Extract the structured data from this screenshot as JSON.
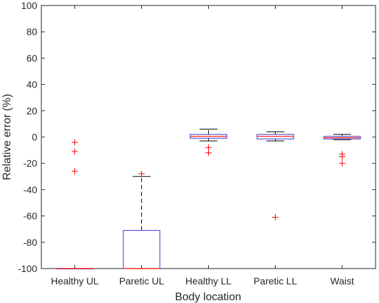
{
  "chart_data": {
    "type": "box",
    "xlabel": "Body location",
    "ylabel": "Relative error (%)",
    "ylim": [
      -100,
      100
    ],
    "yticks": [
      -100,
      -80,
      -60,
      -40,
      -20,
      0,
      20,
      40,
      60,
      80,
      100
    ],
    "grid": false,
    "categories": [
      "Healthy UL",
      "Paretic UL",
      "Healthy LL",
      "Paretic LL",
      "Waist"
    ],
    "boxes": [
      {
        "category": "Healthy UL",
        "whisker_low": -100,
        "q1": -100,
        "median": -100,
        "q3": -100,
        "whisker_high": -100,
        "outliers": [
          -4,
          -11,
          -26
        ]
      },
      {
        "category": "Paretic UL",
        "whisker_low": -100,
        "q1": -100,
        "median": -100,
        "q3": -71,
        "whisker_high": -30,
        "outliers": [
          -28
        ]
      },
      {
        "category": "Healthy LL",
        "whisker_low": -3,
        "q1": -1,
        "median": 0.5,
        "q3": 2,
        "whisker_high": 6,
        "outliers": [
          -8,
          -12
        ]
      },
      {
        "category": "Paretic LL",
        "whisker_low": -3,
        "q1": -1.5,
        "median": 0.5,
        "q3": 2,
        "whisker_high": 4,
        "outliers": [
          -61
        ]
      },
      {
        "category": "Waist",
        "whisker_low": -2,
        "q1": -1.5,
        "median": -0.5,
        "q3": 0.5,
        "whisker_high": 2,
        "outliers": [
          -13,
          -15,
          -20
        ]
      }
    ],
    "colors": {
      "box": "#3333cc",
      "median": "#ff0000",
      "outlier": "#ff0000",
      "whisker": "#000000",
      "axis": "#262626"
    }
  }
}
